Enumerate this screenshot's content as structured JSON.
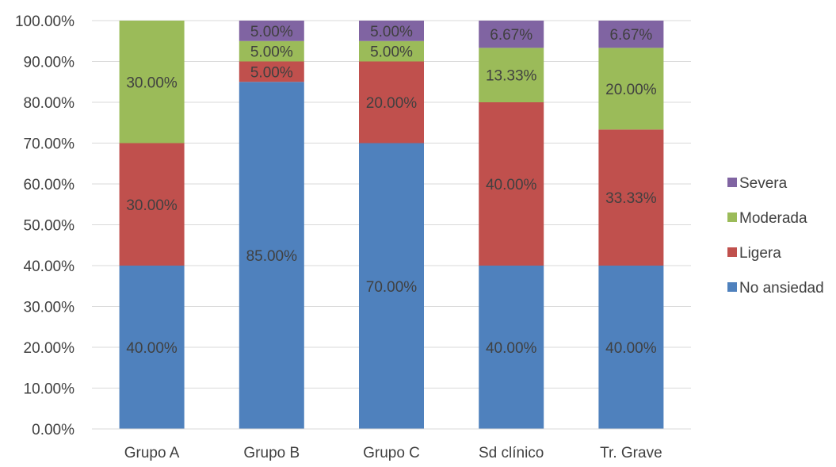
{
  "chart_data": {
    "type": "bar",
    "stacked": true,
    "categories": [
      "Grupo A",
      "Grupo B",
      "Grupo C",
      "Sd clínico",
      "Tr. Grave"
    ],
    "series": [
      {
        "name": "No ansiedad",
        "color": "#4F81BD",
        "values": [
          40,
          85,
          70,
          40,
          40
        ],
        "labels": [
          "40.00%",
          "85.00%",
          "70.00%",
          "40.00%",
          "40.00%"
        ]
      },
      {
        "name": "Ligera",
        "color": "#C0504D",
        "values": [
          30,
          5,
          20,
          40,
          33.33
        ],
        "labels": [
          "30.00%",
          "5.00%",
          "20.00%",
          "40.00%",
          "33.33%"
        ]
      },
      {
        "name": "Moderada",
        "color": "#9BBB59",
        "values": [
          30,
          5,
          5,
          13.33,
          20
        ],
        "labels": [
          "30.00%",
          "5.00%",
          "5.00%",
          "13.33%",
          "20.00%"
        ]
      },
      {
        "name": "Severa",
        "color": "#8064A2",
        "values": [
          0,
          5,
          5,
          6.67,
          6.67
        ],
        "labels": [
          "",
          "5.00%",
          "5.00%",
          "6.67%",
          "6.67%"
        ]
      }
    ],
    "ylim": [
      0,
      100
    ],
    "yticks": [
      "0.00%",
      "10.00%",
      "20.00%",
      "30.00%",
      "40.00%",
      "50.00%",
      "60.00%",
      "70.00%",
      "80.00%",
      "90.00%",
      "100.00%"
    ],
    "grid": true,
    "legend": {
      "position": "right",
      "order": [
        "Severa",
        "Moderada",
        "Ligera",
        "No ansiedad"
      ]
    },
    "title": "",
    "xlabel": "",
    "ylabel": ""
  }
}
